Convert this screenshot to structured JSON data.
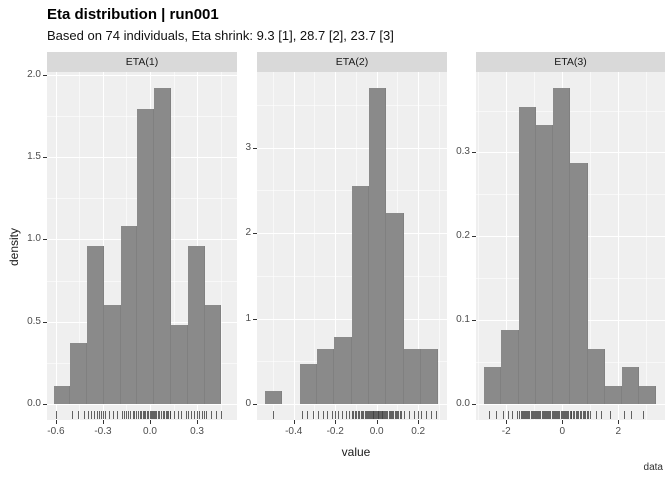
{
  "title": "Eta distribution | run001",
  "subtitle": "Based on 74 individuals, Eta shrink: 9.3 [1], 28.7 [2], 23.7 [3]",
  "colors": {
    "bar": "#8a8a8a",
    "panel_background": "#efefef",
    "strip_background": "#d9d9d9",
    "grid_major": "#ffffff",
    "grid_minor": "rgba(255,255,255,0.55)",
    "axis_text": "#4d4d4d",
    "text": "#1a1a1a",
    "rug": "#3d3d3d",
    "tick": "#333333"
  },
  "chart_data": {
    "type": "bar",
    "subtype": "faceted-histogram-with-rug",
    "n_individuals": 74,
    "xlabel": "value",
    "ylabel": "density",
    "caption": "data",
    "legend": "none",
    "facets": [
      {
        "label": "ETA(1)",
        "bin_start": -0.615,
        "bin_width": 0.107,
        "densities": [
          0.11,
          0.37,
          0.96,
          0.6,
          1.08,
          1.79,
          1.92,
          0.48,
          0.96,
          0.6
        ],
        "x_domain": [
          -0.657,
          0.555
        ],
        "y_domain": [
          -0.096,
          2.016
        ],
        "y_ticks": [
          {
            "v": 0.0,
            "t": "0.0"
          },
          {
            "v": 0.5,
            "t": "0.5"
          },
          {
            "v": 1.0,
            "t": "1.0"
          },
          {
            "v": 1.5,
            "t": "1.5"
          },
          {
            "v": 2.0,
            "t": "2.0"
          }
        ],
        "y_minor": [
          0.25,
          0.75,
          1.25,
          1.75
        ],
        "x_ticks": [
          {
            "v": -0.6,
            "t": "-0.6"
          },
          {
            "v": -0.3,
            "t": "-0.3"
          },
          {
            "v": 0.0,
            "t": "0.0"
          },
          {
            "v": 0.3,
            "t": "0.3"
          }
        ],
        "x_minor": [
          -0.45,
          -0.15,
          0.15,
          0.45
        ],
        "rug": [
          -0.6,
          -0.5,
          -0.46,
          -0.42,
          -0.395,
          -0.375,
          -0.355,
          -0.34,
          -0.325,
          -0.31,
          -0.3,
          -0.285,
          -0.26,
          -0.235,
          -0.21,
          -0.18,
          -0.165,
          -0.15,
          -0.14,
          -0.125,
          -0.11,
          -0.1,
          -0.09,
          -0.075,
          -0.065,
          -0.055,
          -0.045,
          -0.04,
          -0.03,
          -0.02,
          -0.01,
          0.0,
          0.005,
          0.01,
          0.02,
          0.025,
          0.03,
          0.04,
          0.05,
          0.06,
          0.07,
          0.08,
          0.09,
          0.1,
          0.11,
          0.115,
          0.125,
          0.13,
          0.15,
          0.18,
          0.2,
          0.23,
          0.245,
          0.26,
          0.28,
          0.3,
          0.315,
          0.33,
          0.345,
          0.36,
          0.39,
          0.42,
          0.45
        ]
      },
      {
        "label": "ETA(2)",
        "bin_start": -0.538,
        "bin_width": 0.0835,
        "densities": [
          0.15,
          0,
          0.47,
          0.65,
          0.79,
          2.55,
          3.7,
          2.24,
          0.65,
          0.65
        ],
        "x_domain": [
          -0.577,
          0.339
        ],
        "y_domain": [
          -0.185,
          3.885
        ],
        "y_ticks": [
          {
            "v": 0,
            "t": "0"
          },
          {
            "v": 1,
            "t": "1"
          },
          {
            "v": 2,
            "t": "2"
          },
          {
            "v": 3,
            "t": "3"
          }
        ],
        "y_minor": [
          0.5,
          1.5,
          2.5,
          3.5
        ],
        "x_ticks": [
          {
            "v": -0.4,
            "t": "-0.4"
          },
          {
            "v": -0.2,
            "t": "-0.2"
          },
          {
            "v": 0.0,
            "t": "0.0"
          },
          {
            "v": 0.2,
            "t": "0.2"
          }
        ],
        "x_minor": [
          -0.5,
          -0.3,
          -0.1,
          0.1,
          0.3
        ],
        "rug": [
          -0.5,
          -0.36,
          -0.335,
          -0.305,
          -0.285,
          -0.26,
          -0.24,
          -0.215,
          -0.2,
          -0.185,
          -0.165,
          -0.15,
          -0.135,
          -0.12,
          -0.113,
          -0.106,
          -0.099,
          -0.092,
          -0.085,
          -0.078,
          -0.071,
          -0.064,
          -0.057,
          -0.05,
          -0.045,
          -0.04,
          -0.036,
          -0.032,
          -0.028,
          -0.024,
          -0.02,
          -0.016,
          -0.012,
          -0.008,
          -0.004,
          0.0,
          0.004,
          0.008,
          0.012,
          0.016,
          0.02,
          0.024,
          0.028,
          0.032,
          0.036,
          0.04,
          0.045,
          0.051,
          0.057,
          0.063,
          0.069,
          0.075,
          0.081,
          0.087,
          0.093,
          0.099,
          0.105,
          0.111,
          0.117,
          0.13,
          0.155,
          0.18,
          0.2,
          0.215,
          0.24,
          0.26,
          0.285
        ]
      },
      {
        "label": "ETA(3)",
        "bin_start": -2.786,
        "bin_width": 0.615,
        "densities": [
          0.044,
          0.089,
          0.354,
          0.333,
          0.377,
          0.288,
          0.066,
          0.022,
          0.044,
          0.022
        ],
        "x_domain": [
          -3.08,
          3.67
        ],
        "y_domain": [
          -0.0188,
          0.3959
        ],
        "y_ticks": [
          {
            "v": 0.0,
            "t": "0.0"
          },
          {
            "v": 0.1,
            "t": "0.1"
          },
          {
            "v": 0.2,
            "t": "0.2"
          },
          {
            "v": 0.3,
            "t": "0.3"
          }
        ],
        "y_minor": [
          0.05,
          0.15,
          0.25,
          0.35
        ],
        "x_ticks": [
          {
            "v": -2,
            "t": "-2"
          },
          {
            "v": 0,
            "t": "0"
          },
          {
            "v": 2,
            "t": "2"
          }
        ],
        "x_minor": [
          -3,
          -1,
          1,
          3
        ],
        "rug": [
          -2.6,
          -2.35,
          -2.1,
          -1.95,
          -1.8,
          -1.62,
          -1.53,
          -1.49,
          -1.45,
          -1.41,
          -1.37,
          -1.33,
          -1.29,
          -1.25,
          -1.21,
          -1.17,
          -1.13,
          -1.09,
          -1.05,
          -1.01,
          -0.97,
          -0.93,
          -0.9,
          -0.86,
          -0.82,
          -0.78,
          -0.74,
          -0.7,
          -0.66,
          -0.62,
          -0.58,
          -0.54,
          -0.5,
          -0.46,
          -0.42,
          -0.38,
          -0.34,
          -0.3,
          -0.26,
          -0.22,
          -0.18,
          -0.14,
          -0.1,
          -0.06,
          -0.02,
          0.02,
          0.06,
          0.1,
          0.14,
          0.18,
          0.22,
          0.26,
          0.3,
          0.33,
          0.38,
          0.43,
          0.48,
          0.53,
          0.58,
          0.63,
          0.68,
          0.73,
          0.78,
          0.83,
          0.88,
          0.92,
          1.0,
          1.2,
          1.4,
          1.7,
          2.2,
          2.45,
          2.9
        ]
      }
    ]
  }
}
